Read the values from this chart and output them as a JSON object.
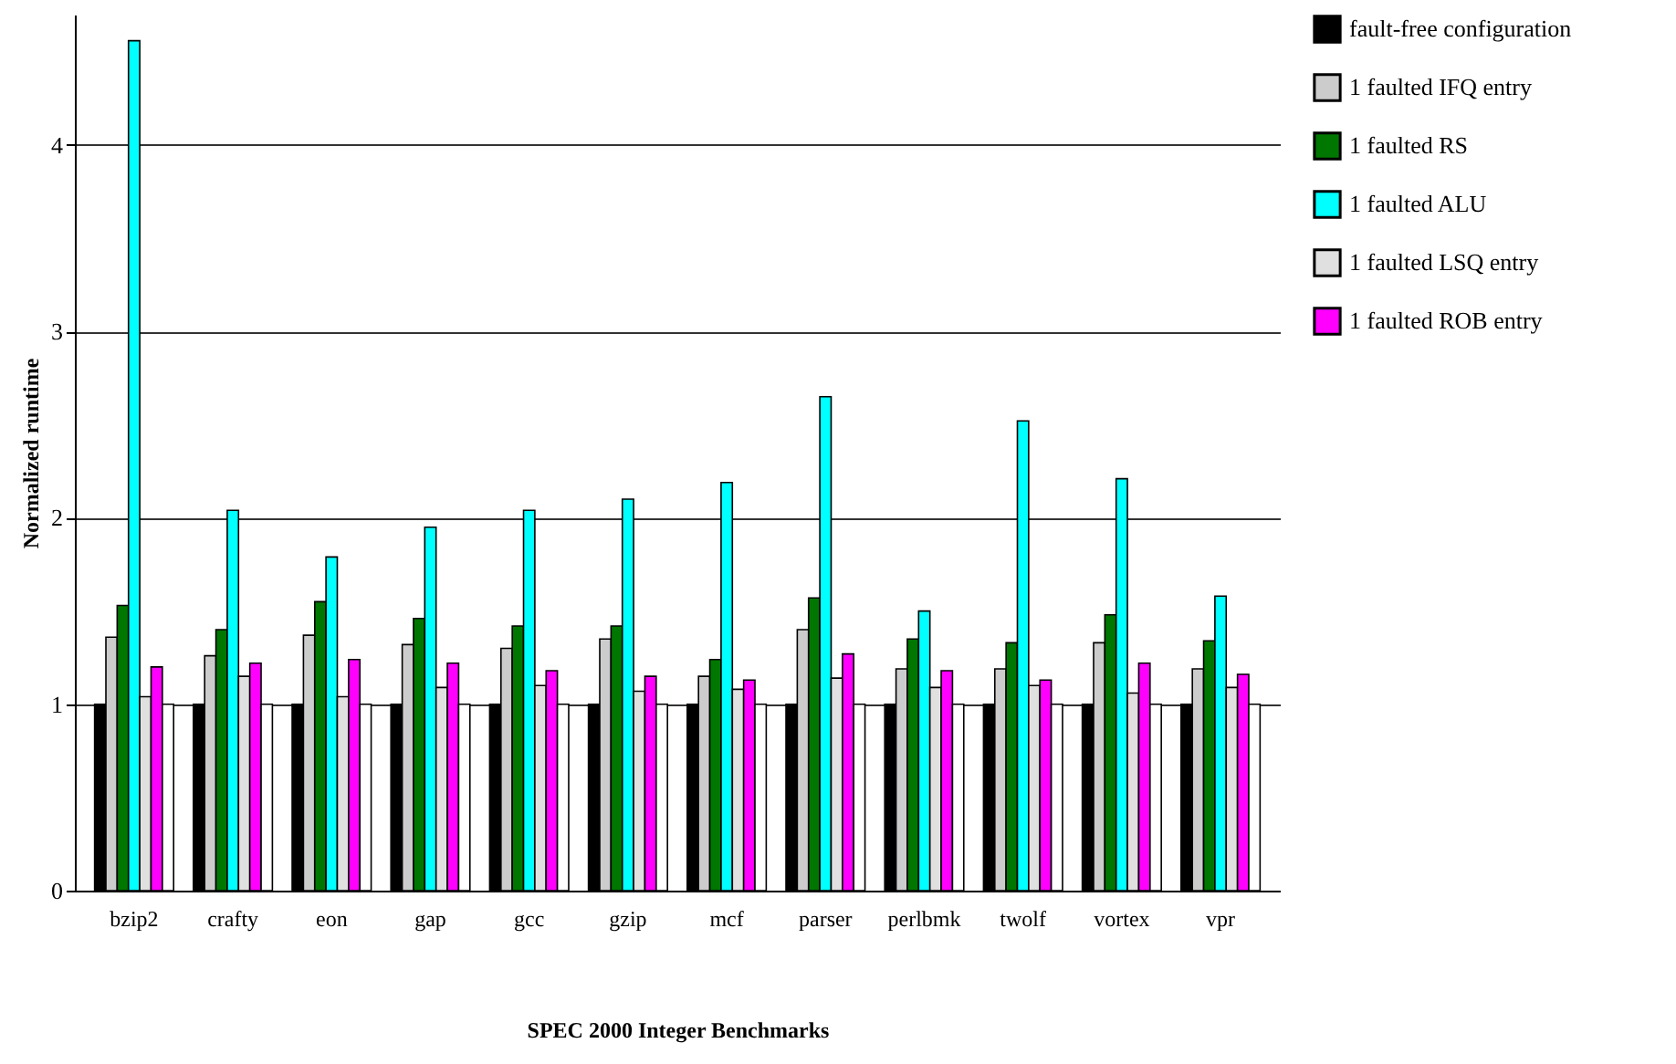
{
  "chart_data": {
    "type": "bar",
    "xlabel": "SPEC 2000 Integer Benchmarks",
    "ylabel": "Normalized runtime",
    "categories": [
      "bzip2",
      "crafty",
      "eon",
      "gap",
      "gcc",
      "gzip",
      "mcf",
      "parser",
      "perlbmk",
      "twolf",
      "vortex",
      "vpr"
    ],
    "series": [
      {
        "name": "fault-free configuration",
        "color": "#000000",
        "values": [
          1,
          1,
          1,
          1,
          1,
          1,
          1,
          1,
          1,
          1,
          1,
          1
        ]
      },
      {
        "name": "1 faulted IFQ entry",
        "color": "#cccccc",
        "values": [
          1.36,
          1.26,
          1.37,
          1.32,
          1.3,
          1.35,
          1.15,
          1.4,
          1.19,
          1.19,
          1.33,
          1.19
        ]
      },
      {
        "name": "1 faulted RS",
        "color": "#007700",
        "values": [
          1.53,
          1.4,
          1.55,
          1.46,
          1.42,
          1.42,
          1.24,
          1.57,
          1.35,
          1.33,
          1.48,
          1.34
        ]
      },
      {
        "name": "1 faulted ALU",
        "color": "#00ffff",
        "values": [
          4.56,
          2.04,
          1.79,
          1.95,
          2.04,
          2.1,
          2.19,
          2.65,
          1.5,
          2.52,
          2.21,
          1.58
        ]
      },
      {
        "name": "1 faulted LSQ entry",
        "color": "#e0e0e0",
        "values": [
          1.04,
          1.15,
          1.04,
          1.09,
          1.1,
          1.07,
          1.08,
          1.14,
          1.09,
          1.1,
          1.06,
          1.09
        ]
      },
      {
        "name": "1 faulted ROB entry",
        "color": "#ff00ff",
        "values": [
          1.2,
          1.22,
          1.24,
          1.22,
          1.18,
          1.15,
          1.13,
          1.27,
          1.18,
          1.13,
          1.22,
          1.16
        ]
      },
      {
        "color": "#ffffff",
        "values": [
          1,
          1,
          1,
          1,
          1,
          1,
          1,
          1,
          1,
          1,
          1,
          1
        ]
      }
    ],
    "ylim": [
      0,
      4.7
    ],
    "yticks": [
      0,
      1,
      2,
      3,
      4
    ],
    "grid": "y",
    "legend": "right"
  }
}
